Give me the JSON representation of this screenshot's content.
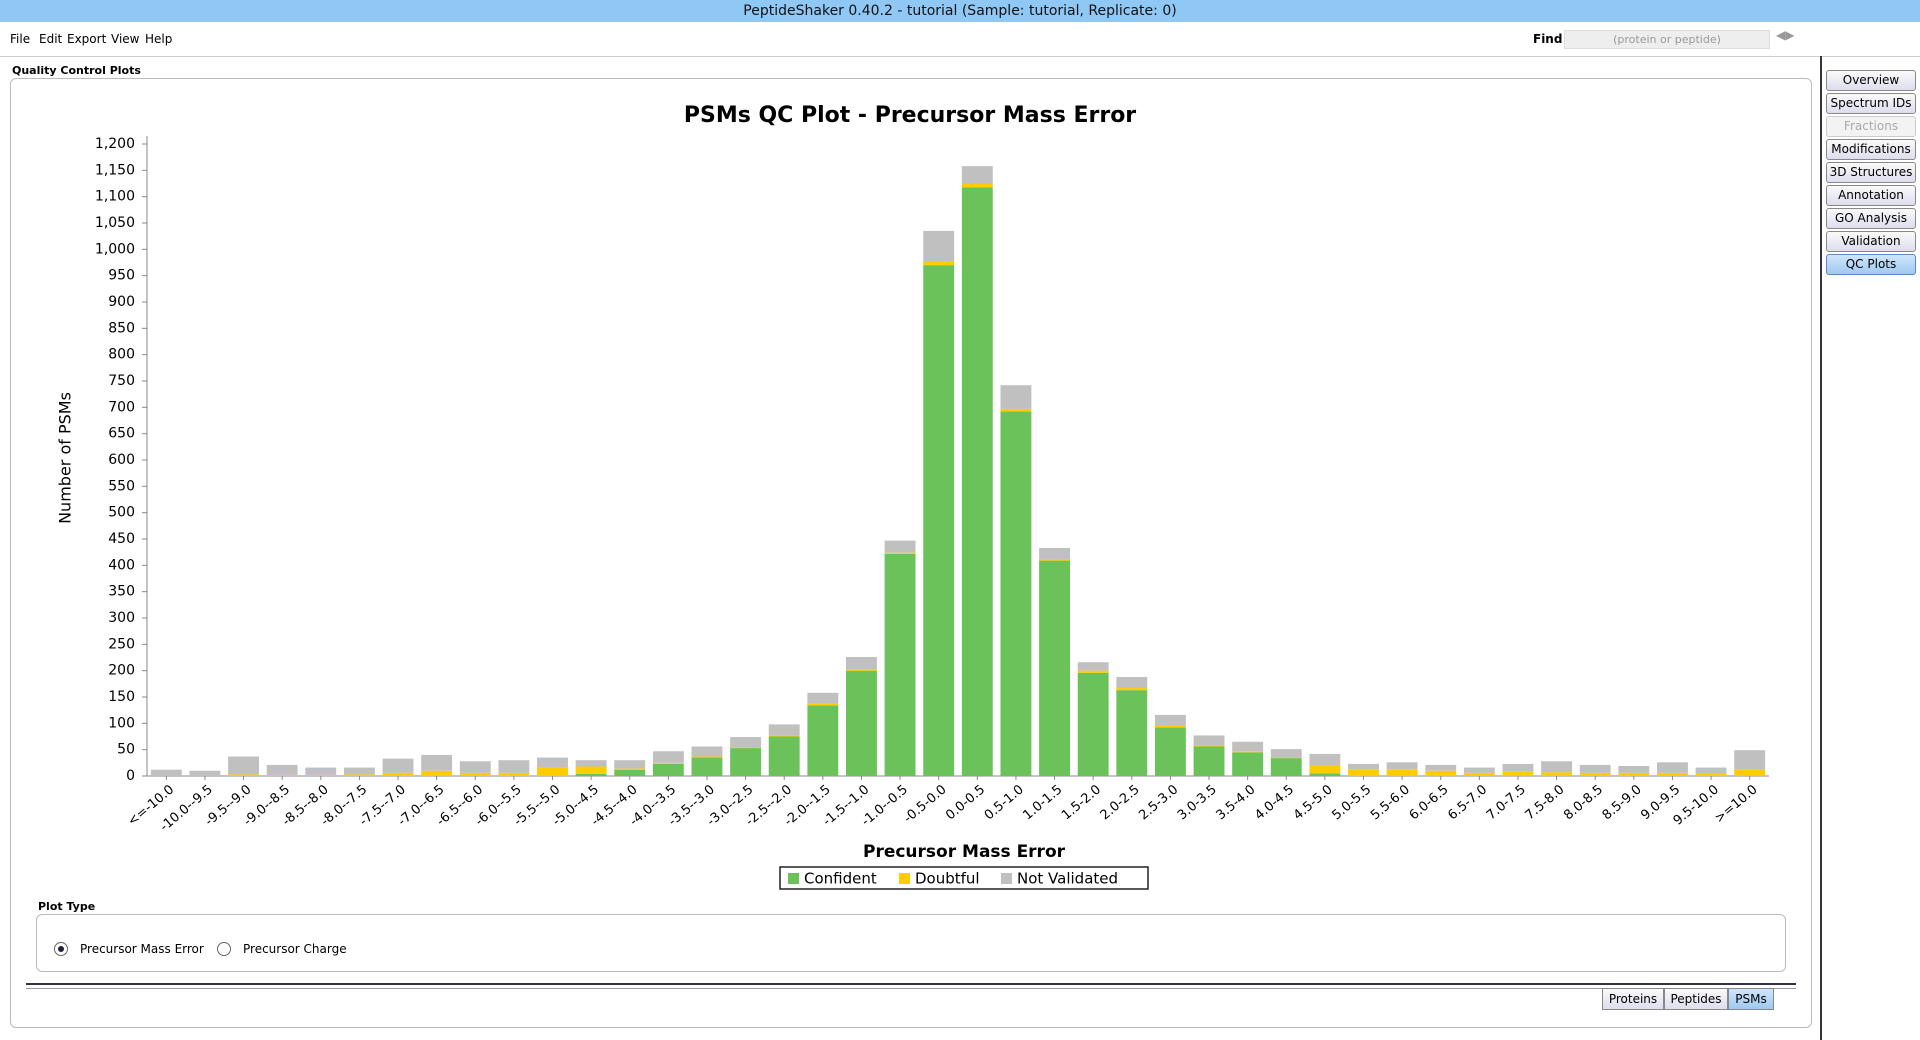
{
  "window_title": "PeptideShaker 0.40.2 - tutorial (Sample: tutorial, Replicate: 0)",
  "menu": [
    "File",
    "Edit",
    "Export",
    "View",
    "Help"
  ],
  "find": {
    "label": "Find",
    "placeholder": "(protein or peptide)"
  },
  "panel_title": "Quality Control Plots",
  "side_tabs": [
    "Overview",
    "Spectrum IDs",
    "Fractions",
    "Modifications",
    "3D Structures",
    "Annotation",
    "GO Analysis",
    "Validation",
    "QC Plots"
  ],
  "chart_data": {
    "type": "bar",
    "stacked": true,
    "title": "PSMs QC Plot - Precursor Mass Error",
    "xlabel": "Precursor Mass Error",
    "ylabel": "Number of PSMs",
    "categories": [
      "<=-10.0",
      "-10.0--9.5",
      "-9.5--9.0",
      "-9.0--8.5",
      "-8.5--8.0",
      "-8.0--7.5",
      "-7.5--7.0",
      "-7.0--6.5",
      "-6.5--6.0",
      "-6.0--5.5",
      "-5.5--5.0",
      "-5.0--4.5",
      "-4.5--4.0",
      "-4.0--3.5",
      "-3.5--3.0",
      "-3.0--2.5",
      "-2.5--2.0",
      "-2.0--1.5",
      "-1.5--1.0",
      "-1.0--0.5",
      "-0.5-0.0",
      "0.0-0.5",
      "0.5-1.0",
      "1.0-1.5",
      "1.5-2.0",
      "2.0-2.5",
      "2.5-3.0",
      "3.0-3.5",
      "3.5-4.0",
      "4.0-4.5",
      "4.5-5.0",
      "5.0-5.5",
      "5.5-6.0",
      "6.0-6.5",
      "6.5-7.0",
      "7.0-7.5",
      "7.5-8.0",
      "8.0-8.5",
      "8.5-9.0",
      "9.0-9.5",
      "9.5-10.0",
      ">=10.0"
    ],
    "series": [
      {
        "name": "Confident",
        "color": "#6cc25a",
        "values": [
          0,
          0,
          0,
          0,
          0,
          0,
          0,
          0,
          0,
          0,
          0,
          4,
          12,
          23,
          35,
          53,
          75,
          134,
          200,
          422,
          970,
          1118,
          692,
          409,
          196,
          163,
          92,
          56,
          45,
          34,
          5,
          0,
          0,
          0,
          0,
          0,
          0,
          0,
          0,
          0,
          0,
          0
        ]
      },
      {
        "name": "Doubtful",
        "color": "#ffcc00",
        "values": [
          0,
          0,
          3,
          2,
          2,
          3,
          6,
          10,
          6,
          6,
          17,
          14,
          2,
          2,
          2,
          2,
          2,
          3,
          2,
          2,
          6,
          6,
          5,
          3,
          4,
          4,
          3,
          2,
          2,
          2,
          15,
          12,
          13,
          10,
          6,
          8,
          7,
          6,
          6,
          6,
          4,
          12
        ]
      },
      {
        "name": "Not Validated",
        "color": "#c0c0c0",
        "values": [
          12,
          10,
          34,
          19,
          14,
          13,
          27,
          30,
          22,
          24,
          18,
          12,
          16,
          22,
          19,
          19,
          21,
          21,
          24,
          23,
          59,
          34,
          45,
          21,
          16,
          21,
          21,
          19,
          18,
          15,
          22,
          11,
          13,
          11,
          10,
          15,
          21,
          15,
          13,
          20,
          12,
          37
        ]
      }
    ],
    "ylim": [
      0,
      1200
    ],
    "yticks": [
      0,
      50,
      100,
      150,
      200,
      250,
      300,
      350,
      400,
      450,
      500,
      550,
      600,
      650,
      700,
      750,
      800,
      850,
      900,
      950,
      {
        "value": 1000,
        "label": "1,000"
      },
      {
        "value": 1050,
        "label": "1,050"
      },
      {
        "value": 1100,
        "label": "1,100"
      },
      {
        "value": 1150,
        "label": "1,150"
      },
      {
        "value": 1200,
        "label": "1,200"
      }
    ],
    "grid": false,
    "legend": "bottom"
  },
  "plot_type": {
    "title": "Plot Type",
    "options": [
      "Precursor Mass Error",
      "Precursor Charge"
    ],
    "selected": 0
  },
  "bottom_tabs": [
    "Proteins",
    "Peptides",
    "PSMs"
  ]
}
